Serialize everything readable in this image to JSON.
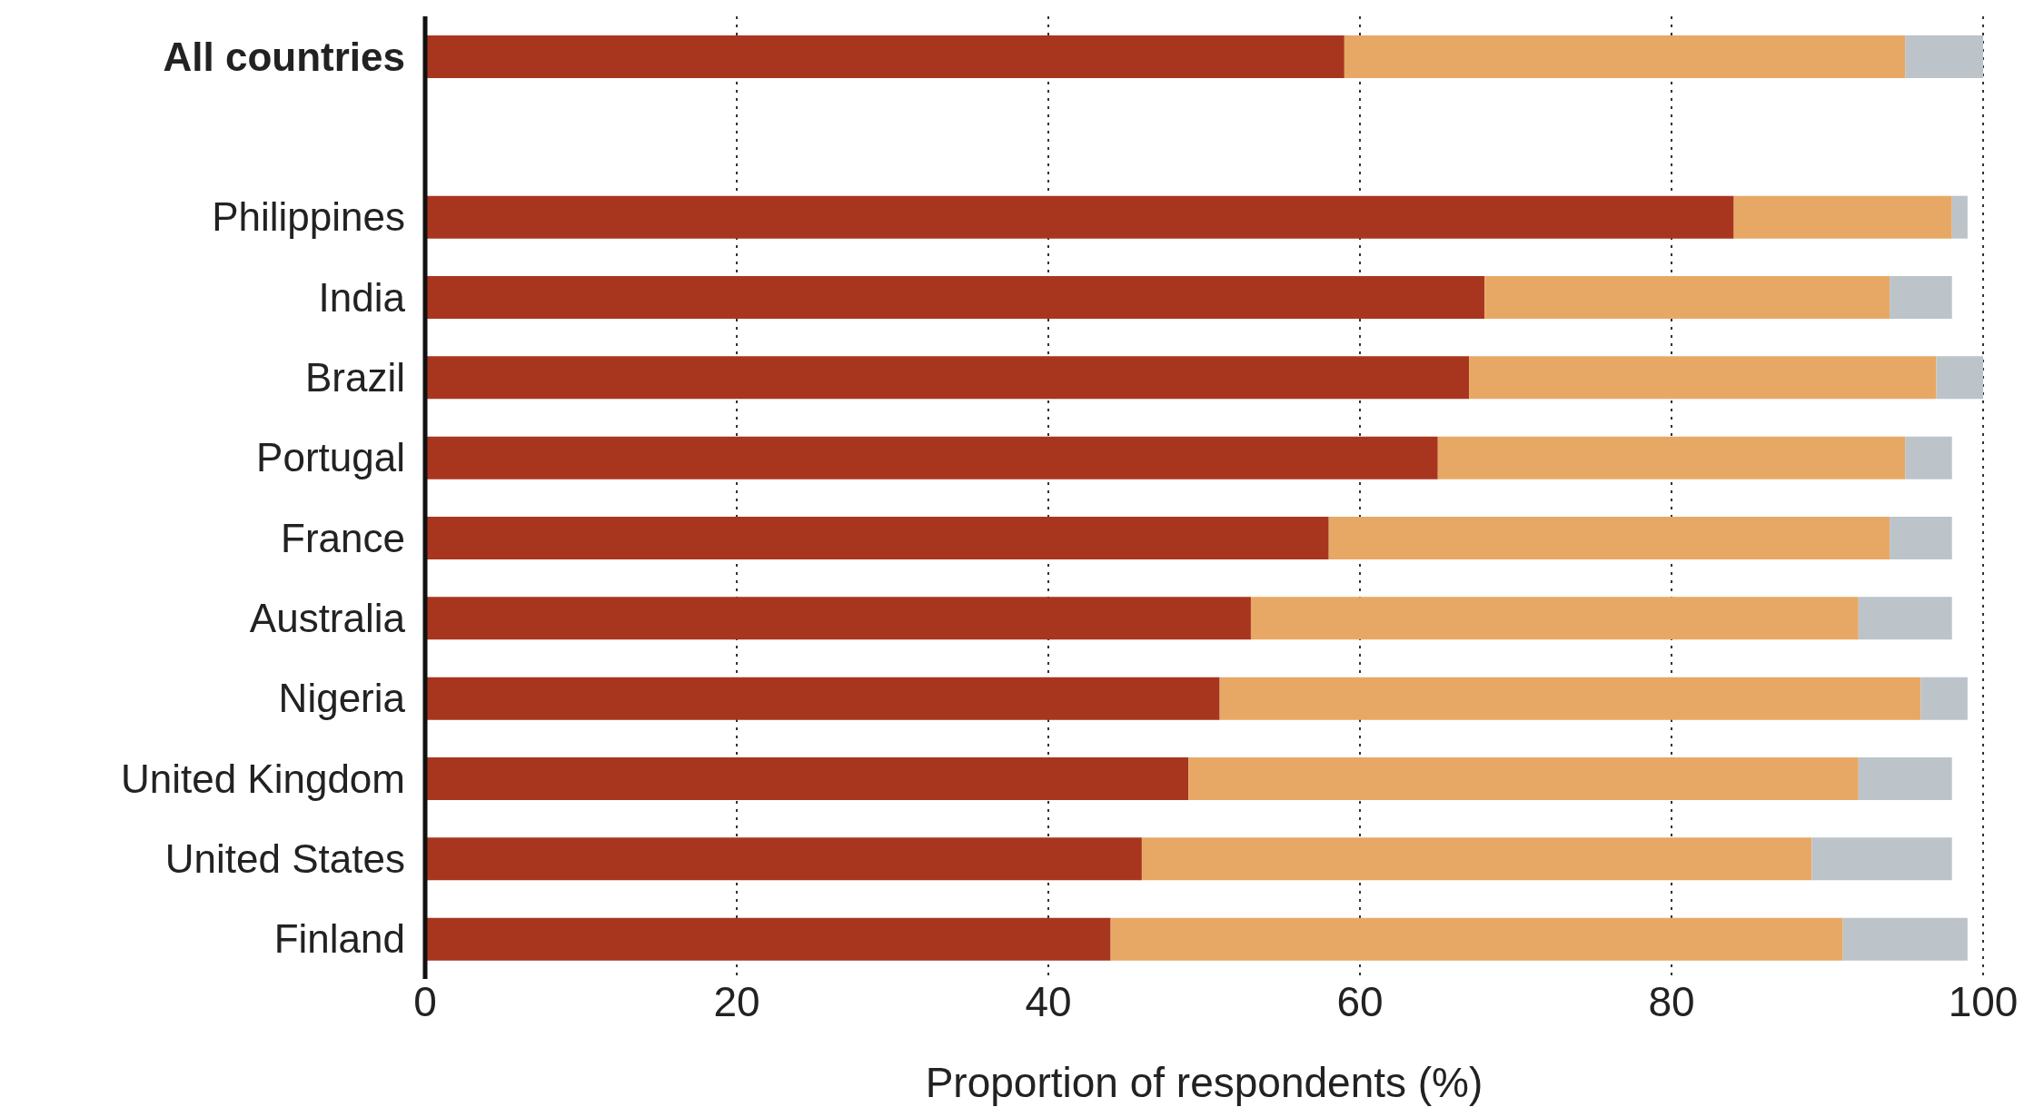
{
  "chart_data": {
    "type": "bar",
    "orientation": "horizontal",
    "stacked": true,
    "xlabel": "Proportion of respondents (%)",
    "categories": [
      "All countries",
      null,
      "Philippines",
      "India",
      "Brazil",
      "Portugal",
      "France",
      "Australia",
      "Nigeria",
      "United Kingdom",
      "United States",
      "Finland"
    ],
    "series": [
      {
        "color": "#a8361f",
        "values": [
          59,
          null,
          84,
          68,
          67,
          65,
          58,
          53,
          51,
          49,
          46,
          44
        ]
      },
      {
        "color": "#e8a865",
        "values": [
          36,
          null,
          14,
          26,
          30,
          30,
          36,
          39,
          45,
          43,
          43,
          47
        ]
      },
      {
        "color": "#bcc3c9",
        "values": [
          5,
          null,
          1,
          4,
          3,
          3,
          4,
          6,
          3,
          6,
          9,
          8
        ]
      }
    ],
    "xlim": [
      0,
      100
    ],
    "xticks": [
      0,
      20,
      40,
      60,
      80,
      100
    ],
    "grid": "x",
    "legend": false
  }
}
